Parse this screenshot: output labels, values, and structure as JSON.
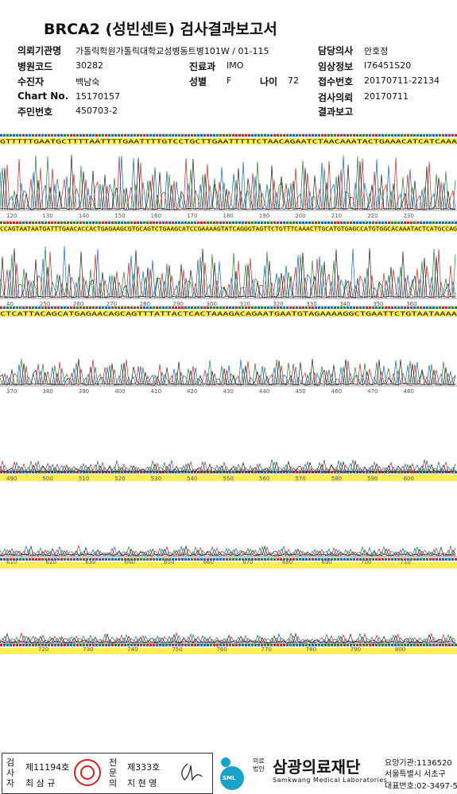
{
  "header": {
    "title": "BRCA2 (성빈센트) 검사결과보고서"
  },
  "fields": [
    {
      "label": "의뢰기관명",
      "value": "가톨릭학원가톨릭대학교성병동트병101W / 01-115"
    },
    {
      "label": "담당의사",
      "value": "안호정"
    },
    {
      "label": "병원코드",
      "value": "30282"
    },
    {
      "label": "진료과",
      "value": "IMO"
    },
    {
      "label": "임상정보",
      "value": "I76451S20"
    },
    {
      "label": "수진자",
      "value": "백남숙"
    },
    {
      "label": "성별",
      "value": "F"
    },
    {
      "label": "나이",
      "value": "72"
    },
    {
      "label": "접수번호",
      "value": "20170711-22134"
    },
    {
      "label": "Chart No.",
      "value": "15170157"
    },
    {
      "label": "검사의뢰",
      "value": "20170711"
    },
    {
      "label": "주민번호",
      "value": "450703-2"
    },
    {
      "label": "결과보고"
    }
  ],
  "tracks": [
    {
      "sequence": "GTTTTTGAATGCTTTTAATTTTGAATTTTGTCCTGCTTGAATTTTTCTAACAGAATCTAACAAATACTGAAACATCATCAAA",
      "ticks": [
        "120",
        "130",
        "140",
        "150",
        "160",
        "170",
        "180",
        "190",
        "200",
        "210",
        "220",
        "230"
      ]
    },
    {
      "sequence": "CCAGTAATAATGATTTGAACACCACTGAGAAGCGTGCAGTCTGAAGCATCCGAAAAGTATCAGGGTAGTTCTGTTTCAAACTTGCATGTGAGCCATGTGGCACAAATACTCATGCCAG",
      "ticks": [
        "40",
        "250",
        "260",
        "270",
        "280",
        "290",
        "300",
        "310",
        "320",
        "330",
        "340",
        "350",
        "360"
      ]
    },
    {
      "sequence": "CTCATTACAGCATGAGAACAGCAGTTTATTACTCACTAAAGACAGAATGAATGTAGAAAAGGCTGAATTCTGTAATAAAA",
      "ticks": [
        "370",
        "380",
        "390",
        "400",
        "410",
        "420",
        "430",
        "440",
        "450",
        "460",
        "470",
        "480"
      ]
    },
    {
      "ticks": [
        "490",
        "500",
        "510",
        "520",
        "530",
        "540",
        "550",
        "560",
        "570",
        "580",
        "590",
        "600"
      ]
    },
    {
      "ticks": [
        "610",
        "620",
        "630",
        "640",
        "650",
        "660",
        "670",
        "680",
        "690",
        "700",
        "710"
      ]
    },
    {
      "ticks": [
        "720",
        "730",
        "740",
        "750",
        "760",
        "770",
        "780",
        "790",
        "800"
      ]
    }
  ],
  "footer": {
    "checker_label": "검사자",
    "checker_no": "제11194호",
    "checker_name": "최 삼 규",
    "specialist_label": "전문의",
    "specialist_no": "제333호",
    "specialist_name": "지 현 영",
    "logo": "SML",
    "corp": "의료법인",
    "org": "삼광의료재단",
    "org_en": "Samkwang Medical Laboratories",
    "code": "요양기관:1136520",
    "address": "서울특별시 서초구",
    "phone": "대표번호:02-3497-5"
  }
}
